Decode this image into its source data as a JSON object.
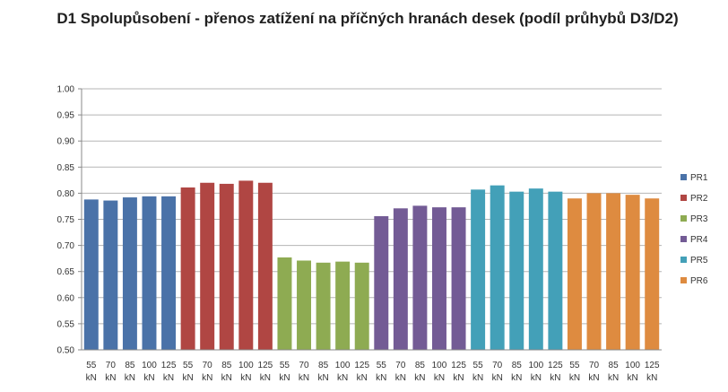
{
  "chart_data": {
    "type": "bar",
    "title": "D1 Spolupůsobení - přenos zatížení na příčných hranách desek (podíl průhybů D3/D2)",
    "xlabel": "",
    "ylabel": "",
    "ylim": [
      0.5,
      1.0
    ],
    "ytick_step": 0.05,
    "yticks": [
      "0.50",
      "0.55",
      "0.60",
      "0.65",
      "0.70",
      "0.75",
      "0.80",
      "0.85",
      "0.90",
      "0.95",
      "1.00"
    ],
    "grid": true,
    "legend_position": "right",
    "categories": [
      "55 kN",
      "70 kN",
      "85 kN",
      "100 kN",
      "125 kN"
    ],
    "category_lines": [
      [
        "55",
        "kN"
      ],
      [
        "70",
        "kN"
      ],
      [
        "85",
        "kN"
      ],
      [
        "100",
        "kN"
      ],
      [
        "125",
        "kN"
      ]
    ],
    "series": [
      {
        "name": "PR1",
        "color": "#4a72a8",
        "values": [
          0.788,
          0.786,
          0.792,
          0.794,
          0.794
        ]
      },
      {
        "name": "PR2",
        "color": "#b04643",
        "values": [
          0.811,
          0.82,
          0.818,
          0.824,
          0.82
        ]
      },
      {
        "name": "PR3",
        "color": "#8eab52",
        "values": [
          0.677,
          0.671,
          0.667,
          0.669,
          0.667
        ]
      },
      {
        "name": "PR4",
        "color": "#735b95",
        "values": [
          0.756,
          0.771,
          0.776,
          0.773,
          0.773
        ]
      },
      {
        "name": "PR5",
        "color": "#43a0b8",
        "values": [
          0.807,
          0.815,
          0.803,
          0.809,
          0.803
        ]
      },
      {
        "name": "PR6",
        "color": "#de8b40",
        "values": [
          0.79,
          0.8,
          0.8,
          0.797,
          0.79
        ]
      }
    ]
  }
}
